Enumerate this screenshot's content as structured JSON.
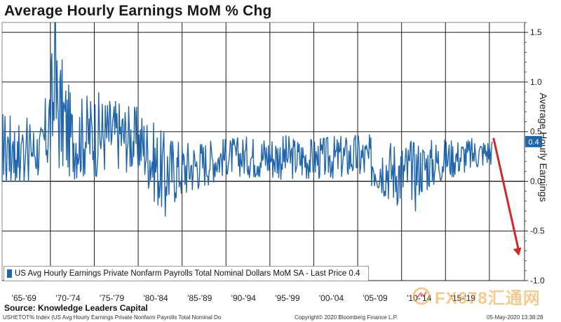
{
  "title": "Average Hourly Earnings MoM % Chg",
  "source": "Source: Knowledge Leaders Capital",
  "footer": {
    "left": "USHETOT% Index (US Avg Hourly Earnings Private Nonfarm Payrolls Total Nominal Do",
    "middle": "Copyright© 2020 Bloomberg Finance L.P.",
    "right": "05-May-2020 13:38:28"
  },
  "watermark": "FX678汇通网",
  "colors": {
    "series": "#2166ac",
    "arrow": "#d62728",
    "grid": "#1a1a1a",
    "zero_line": "#1a1a1a"
  },
  "chart_data": {
    "type": "line",
    "ylabel": "Average Hourly Earnings",
    "ylim": [
      -1.0,
      1.6
    ],
    "yticks": [
      1.5,
      1.0,
      0.5,
      0.0,
      -0.5,
      -1.0
    ],
    "ytick_labels": [
      "1.5",
      "1.0",
      "0.5",
      "0.0",
      "-0.5",
      "-1.0"
    ],
    "x_categories": [
      "'65-'69",
      "'70-'74",
      "'75-'79",
      "'80-'84",
      "'85-'89",
      "'90-'94",
      "'95-'99",
      "'00-'04",
      "'05-'09",
      "'10-'14",
      "'15-'19"
    ],
    "last_price": 0.4,
    "last_price_label": "0.4",
    "projected_next": -0.75,
    "legend": "US Avg Hourly Earnings Private Nonfarm Payrolls Total Nominal Dollars MoM SA - Last Price 0.4",
    "series_shape": [
      {
        "x": 1964.5,
        "y_low": 0.0,
        "y_high": 0.75
      },
      {
        "x": 1969.0,
        "y_low": 0.0,
        "y_high": 0.6
      },
      {
        "x": 1970.5,
        "y_low": 0.0,
        "y_high": 1.6
      },
      {
        "x": 1972.5,
        "y_low": 0.0,
        "y_high": 0.85
      },
      {
        "x": 1975.0,
        "y_low": 0.0,
        "y_high": 0.95
      },
      {
        "x": 1978.0,
        "y_low": 0.1,
        "y_high": 0.85
      },
      {
        "x": 1980.5,
        "y_low": 0.0,
        "y_high": 0.75
      },
      {
        "x": 1982.5,
        "y_low": -0.35,
        "y_high": 0.55
      },
      {
        "x": 1985.0,
        "y_low": -0.2,
        "y_high": 0.45
      },
      {
        "x": 1990.0,
        "y_low": 0.05,
        "y_high": 0.45
      },
      {
        "x": 1995.0,
        "y_low": 0.0,
        "y_high": 0.5
      },
      {
        "x": 2000.0,
        "y_low": 0.0,
        "y_high": 0.45
      },
      {
        "x": 2005.0,
        "y_low": 0.0,
        "y_high": 0.5
      },
      {
        "x": 2010.0,
        "y_low": -0.3,
        "y_high": 0.45
      },
      {
        "x": 2015.0,
        "y_low": 0.0,
        "y_high": 0.45
      },
      {
        "x": 2020.0,
        "y_low": 0.15,
        "y_high": 0.45
      }
    ]
  }
}
